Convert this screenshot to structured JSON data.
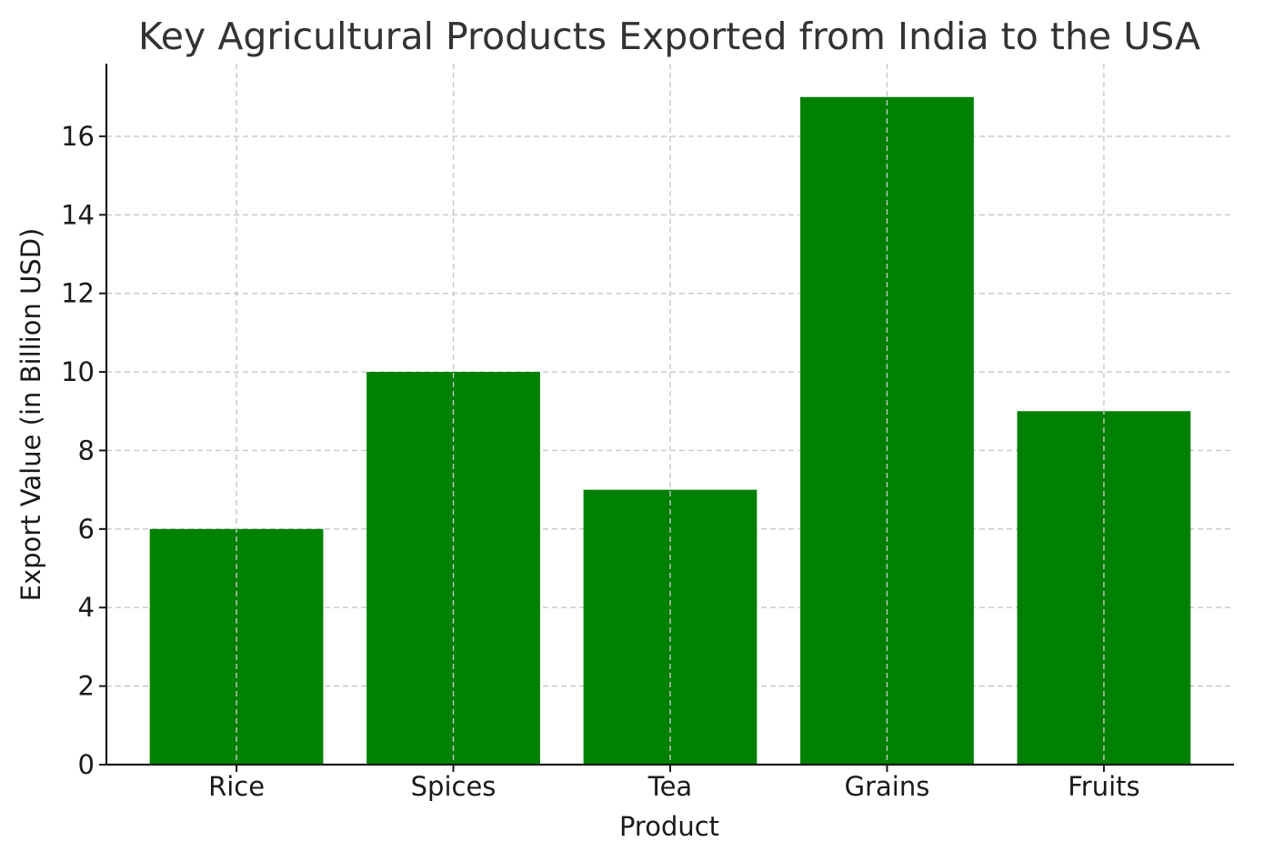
{
  "chart_data": {
    "type": "bar",
    "title": "Key Agricultural Products Exported from India to the USA",
    "xlabel": "Product",
    "ylabel": "Export Value (in Billion USD)",
    "categories": [
      "Rice",
      "Spices",
      "Tea",
      "Grains",
      "Fruits"
    ],
    "values": [
      6,
      10,
      7,
      17,
      9
    ],
    "ylim": [
      0,
      17.85
    ],
    "yticks": [
      0,
      2,
      4,
      6,
      8,
      10,
      12,
      14,
      16
    ],
    "grid": true,
    "bar_color": "#008000"
  }
}
